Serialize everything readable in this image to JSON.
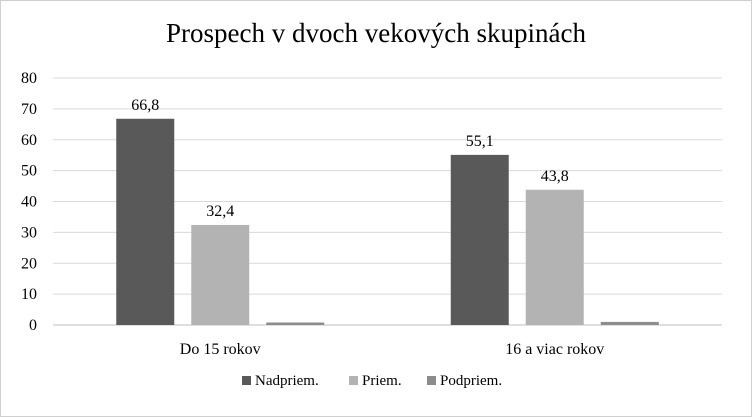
{
  "chart_data": {
    "type": "bar",
    "title": "Prospech v dvoch vekových skupinách",
    "categories": [
      "Do 15 rokov",
      "16 a viac rokov"
    ],
    "series": [
      {
        "name": "Nadpriem.",
        "color": "#595959",
        "values": [
          66.8,
          55.1
        ],
        "labels": [
          "66,8",
          "55,1"
        ]
      },
      {
        "name": "Priem.",
        "color": "#b3b3b3",
        "values": [
          32.4,
          43.8
        ],
        "labels": [
          "32,4",
          "43,8"
        ]
      },
      {
        "name": "Podpriem.",
        "color": "#8c8c8c",
        "values": [
          0.8,
          1.0
        ],
        "labels": [
          "",
          ""
        ]
      }
    ],
    "ylim": [
      0,
      80
    ],
    "yticks": [
      "0",
      "10",
      "20",
      "30",
      "40",
      "50",
      "60",
      "70",
      "80"
    ],
    "xlabel": "",
    "ylabel": "",
    "grid": true,
    "legend_position": "bottom"
  }
}
